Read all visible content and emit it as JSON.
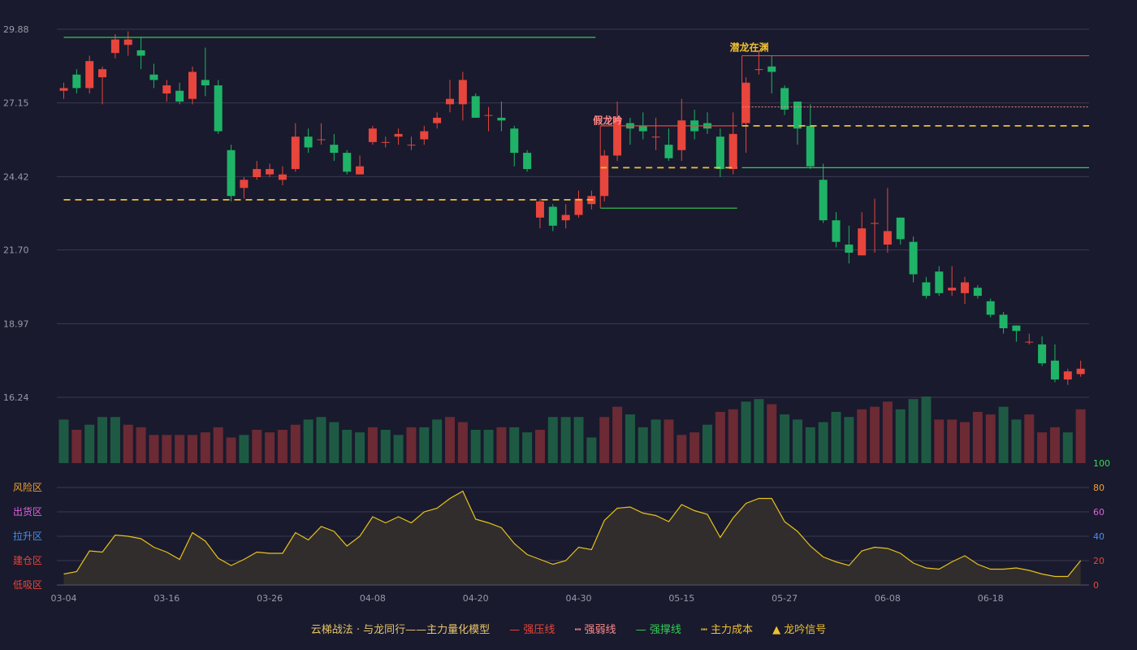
{
  "colors": {
    "background": "#191a2d",
    "up": "#e8453c",
    "down": "#1fb367",
    "resistance": "#e8453c",
    "weak": "#ff8a8a",
    "support": "#33cc55",
    "cost": "#f0c030",
    "signal": "#f0c030",
    "osc_line": "#e8c21c",
    "osc_fill": "#34302c"
  },
  "chart_data": {
    "type": "candlestick",
    "price_axis": {
      "ticks": [
        "29.88",
        "27.15",
        "24.42",
        "21.70",
        "18.97",
        "16.24"
      ],
      "min": 16.24,
      "max": 29.88
    },
    "x_tick_labels": [
      {
        "i": 0,
        "label": "03-04"
      },
      {
        "i": 8,
        "label": "03-16"
      },
      {
        "i": 16,
        "label": "03-26"
      },
      {
        "i": 24,
        "label": "04-08"
      },
      {
        "i": 32,
        "label": "04-20"
      },
      {
        "i": 40,
        "label": "04-30"
      },
      {
        "i": 48,
        "label": "05-15"
      },
      {
        "i": 56,
        "label": "05-27"
      },
      {
        "i": 64,
        "label": "06-08"
      },
      {
        "i": 72,
        "label": "06-18"
      }
    ],
    "candles": [
      [
        27.6,
        27.7,
        27.9,
        27.3
      ],
      [
        28.2,
        27.7,
        28.4,
        27.5
      ],
      [
        27.7,
        28.7,
        28.9,
        27.5
      ],
      [
        28.1,
        28.4,
        28.5,
        27.1
      ],
      [
        29.0,
        29.5,
        29.7,
        28.8
      ],
      [
        29.3,
        29.5,
        29.8,
        28.9
      ],
      [
        29.1,
        28.9,
        29.6,
        28.4
      ],
      [
        28.2,
        28.0,
        28.6,
        27.7
      ],
      [
        27.5,
        27.8,
        28.0,
        27.2
      ],
      [
        27.6,
        27.2,
        27.9,
        27.1
      ],
      [
        27.3,
        28.3,
        28.5,
        27.1
      ],
      [
        28.0,
        27.8,
        29.2,
        27.4
      ],
      [
        27.8,
        26.1,
        28.0,
        26.0
      ],
      [
        25.4,
        23.7,
        25.6,
        23.5
      ],
      [
        24.0,
        24.3,
        24.4,
        23.6
      ],
      [
        24.4,
        24.7,
        25.0,
        24.3
      ],
      [
        24.5,
        24.7,
        24.9,
        24.4
      ],
      [
        24.3,
        24.5,
        24.8,
        24.1
      ],
      [
        24.7,
        25.9,
        26.4,
        24.6
      ],
      [
        25.9,
        25.5,
        26.2,
        25.3
      ],
      [
        25.8,
        25.8,
        26.4,
        25.6
      ],
      [
        25.6,
        25.3,
        26.0,
        25.0
      ],
      [
        25.3,
        24.6,
        25.4,
        24.5
      ],
      [
        24.5,
        24.8,
        25.2,
        24.5
      ],
      [
        25.7,
        26.2,
        26.3,
        25.6
      ],
      [
        25.7,
        25.7,
        25.9,
        25.5
      ],
      [
        25.9,
        26.0,
        26.2,
        25.6
      ],
      [
        25.6,
        25.6,
        25.9,
        25.4
      ],
      [
        25.8,
        26.1,
        26.3,
        25.6
      ],
      [
        26.4,
        26.6,
        26.8,
        26.2
      ],
      [
        27.1,
        27.3,
        28.0,
        26.8
      ],
      [
        27.1,
        28.0,
        28.3,
        26.5
      ],
      [
        27.4,
        26.6,
        27.5,
        26.6
      ],
      [
        26.7,
        26.7,
        27.0,
        26.1
      ],
      [
        26.6,
        26.5,
        27.2,
        26.1
      ],
      [
        26.2,
        25.3,
        26.3,
        24.8
      ],
      [
        25.3,
        24.7,
        25.4,
        24.6
      ],
      [
        22.9,
        23.5,
        23.6,
        22.5
      ],
      [
        23.3,
        22.6,
        23.4,
        22.4
      ],
      [
        22.8,
        23.0,
        23.4,
        22.5
      ],
      [
        23.0,
        23.6,
        23.9,
        22.9
      ],
      [
        23.4,
        23.7,
        23.9,
        23.2
      ],
      [
        23.7,
        25.2,
        25.4,
        23.5
      ],
      [
        25.2,
        26.6,
        27.2,
        25.0
      ],
      [
        26.4,
        26.2,
        26.6,
        25.6
      ],
      [
        26.3,
        26.1,
        26.8,
        25.8
      ],
      [
        25.9,
        25.9,
        26.6,
        25.4
      ],
      [
        25.6,
        25.1,
        26.2,
        25.0
      ],
      [
        25.4,
        26.5,
        27.3,
        25.0
      ],
      [
        26.5,
        26.1,
        26.9,
        25.8
      ],
      [
        26.4,
        26.2,
        26.8,
        26.0
      ],
      [
        25.9,
        24.7,
        26.2,
        24.4
      ],
      [
        24.7,
        26.0,
        26.8,
        24.5
      ],
      [
        26.4,
        27.9,
        28.1,
        25.3
      ],
      [
        28.4,
        28.4,
        29.1,
        28.2
      ],
      [
        28.5,
        28.3,
        28.9,
        27.5
      ],
      [
        27.7,
        26.9,
        27.8,
        26.7
      ],
      [
        27.2,
        26.2,
        27.2,
        25.6
      ],
      [
        26.3,
        24.8,
        27.1,
        24.7
      ],
      [
        24.3,
        22.8,
        24.9,
        22.7
      ],
      [
        22.8,
        22.0,
        23.1,
        21.8
      ],
      [
        21.9,
        21.6,
        22.6,
        21.2
      ],
      [
        21.5,
        22.5,
        23.1,
        21.5
      ],
      [
        22.7,
        22.7,
        23.6,
        21.6
      ],
      [
        21.9,
        22.4,
        24.0,
        21.6
      ],
      [
        22.9,
        22.1,
        22.9,
        21.9
      ],
      [
        22.0,
        20.8,
        22.2,
        20.5
      ],
      [
        20.5,
        20.0,
        20.7,
        19.9
      ],
      [
        20.9,
        20.1,
        21.1,
        20.0
      ],
      [
        20.2,
        20.3,
        21.1,
        20.0
      ],
      [
        20.1,
        20.5,
        20.7,
        19.7
      ],
      [
        20.3,
        20.0,
        20.4,
        19.9
      ],
      [
        19.8,
        19.3,
        19.9,
        19.2
      ],
      [
        19.3,
        18.8,
        19.4,
        18.6
      ],
      [
        18.9,
        18.7,
        18.9,
        18.3
      ],
      [
        18.3,
        18.3,
        18.6,
        18.2
      ],
      [
        18.2,
        17.5,
        18.5,
        17.4
      ],
      [
        17.6,
        16.9,
        18.2,
        16.8
      ],
      [
        16.9,
        17.2,
        17.3,
        16.7
      ],
      [
        17.1,
        17.3,
        17.6,
        17.0
      ]
    ],
    "volume": [
      17,
      13,
      15,
      18,
      18,
      15,
      14,
      11,
      11,
      11,
      11,
      12,
      14,
      10,
      11,
      13,
      12,
      13,
      15,
      17,
      18,
      16,
      13,
      12,
      14,
      13,
      11,
      14,
      14,
      17,
      18,
      16,
      13,
      13,
      14,
      14,
      12,
      13,
      18,
      18,
      18,
      10,
      18,
      22,
      19,
      14,
      17,
      17,
      11,
      12,
      15,
      20,
      21,
      24,
      25,
      23,
      19,
      17,
      14,
      16,
      20,
      18,
      21,
      22,
      24,
      21,
      25,
      26,
      17,
      17,
      16,
      20,
      19,
      22,
      17,
      19,
      12,
      14,
      12,
      21
    ],
    "volume_colors_up": [
      0,
      1,
      0,
      0,
      0,
      1,
      1,
      1,
      1,
      1,
      1,
      1,
      1,
      1,
      0,
      1,
      1,
      1,
      1,
      0,
      0,
      0,
      0,
      0,
      1,
      0,
      0,
      1,
      0,
      0,
      1,
      1,
      0,
      0,
      1,
      0,
      0,
      1,
      0,
      0,
      0,
      0,
      1,
      1,
      0,
      0,
      0,
      1,
      1,
      1,
      0,
      1,
      1,
      0,
      0,
      1,
      0,
      0,
      0,
      0,
      0,
      0,
      1,
      1,
      1,
      0,
      0,
      0,
      1,
      1,
      1,
      1,
      1,
      0,
      0,
      1,
      1,
      1,
      0,
      1
    ],
    "oscillator": [
      9,
      11,
      28,
      27,
      41,
      40,
      38,
      31,
      27,
      21,
      43,
      36,
      22,
      16,
      21,
      27,
      26,
      26,
      43,
      37,
      48,
      44,
      32,
      40,
      56,
      51,
      56,
      51,
      60,
      63,
      71,
      77,
      54,
      51,
      47,
      34,
      25,
      21,
      17,
      20,
      31,
      29,
      53,
      63,
      64,
      59,
      57,
      52,
      66,
      61,
      58,
      39,
      55,
      67,
      71,
      71,
      52,
      44,
      32,
      23,
      19,
      16,
      28,
      31,
      30,
      26,
      18,
      14,
      13,
      19,
      24,
      17,
      13,
      13,
      14,
      12,
      9,
      7,
      7,
      20
    ],
    "osc_axis": {
      "ticks": [
        "100",
        "80",
        "60",
        "40",
        "20",
        "0"
      ],
      "min": 0,
      "max": 100
    },
    "osc_zones": [
      "风险区",
      "出货区",
      "拉升区",
      "建仓区",
      "低吸区"
    ],
    "lines": [
      {
        "kind": "support",
        "from": 0,
        "to": 41,
        "y": 29.58
      },
      {
        "kind": "cost",
        "from": 0,
        "to": 41,
        "y": 23.56
      },
      {
        "kind": "support",
        "from": 42,
        "to": 52,
        "y": 23.25
      },
      {
        "kind": "cost",
        "from": 42,
        "to": 52,
        "y": 24.75
      },
      {
        "kind": "resistance",
        "from": 42,
        "to": 52,
        "y": 26.3
      },
      {
        "kind": "resistance",
        "from": 53,
        "to": 79,
        "y": 28.9
      },
      {
        "kind": "weak",
        "from": 53,
        "to": 79,
        "y": 27.0
      },
      {
        "kind": "cost",
        "from": 53,
        "to": 79,
        "y": 26.3
      },
      {
        "kind": "support",
        "from": 53,
        "to": 79,
        "y": 24.75
      }
    ],
    "signals": [
      {
        "i": 42,
        "price": 26.5,
        "text": "假龙吟",
        "color": "#ff8a8a"
      },
      {
        "i": 53,
        "price": 29.2,
        "text": "潜龙在渊",
        "color": "#f0c030"
      }
    ]
  },
  "legend": {
    "title": "云梯战法 · 与龙同行——主力量化模型",
    "items": [
      {
        "symbol": "—",
        "label": "强压线",
        "color": "#e8453c"
      },
      {
        "symbol": "┅",
        "label": "强弱线",
        "color": "#ff8a8a"
      },
      {
        "symbol": "—",
        "label": "强撑线",
        "color": "#33cc55"
      },
      {
        "symbol": "┅",
        "label": "主力成本",
        "color": "#f0c030"
      },
      {
        "symbol": "▲",
        "label": "龙吟信号",
        "color": "#f0c030"
      }
    ]
  }
}
